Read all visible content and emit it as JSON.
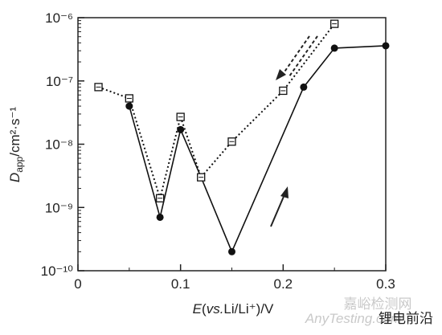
{
  "chart_data": {
    "type": "line",
    "log_y": true,
    "y_label": {
      "symbol": "D",
      "subscript": "app",
      "unit": "/cm²·s⁻¹"
    },
    "x_label": {
      "symbol": "E",
      "open": "(",
      "italic": "vs.",
      "rest": "Li/Li⁺)/V"
    },
    "xlim": [
      0,
      0.3
    ],
    "xticks": [
      0,
      0.1,
      0.2,
      0.3
    ],
    "ylim": [
      1e-10,
      1e-06
    ],
    "yticks": [
      {
        "value": 1e-10,
        "label": "10⁻¹⁰"
      },
      {
        "value": 1e-09,
        "label": "10⁻⁹"
      },
      {
        "value": 1e-08,
        "label": "10⁻⁸"
      },
      {
        "value": 1e-07,
        "label": "10⁻⁷"
      },
      {
        "value": 1e-06,
        "label": "10⁻⁶"
      }
    ],
    "series": [
      {
        "color": "#111111",
        "marker": "circle",
        "dash": false,
        "x": [
          0.05,
          0.08,
          0.1,
          0.12,
          0.15,
          0.22,
          0.25,
          0.3
        ],
        "values": [
          4e-08,
          7e-10,
          1.7e-08,
          3e-09,
          2e-10,
          8e-08,
          3.3e-07,
          3.6e-07
        ]
      },
      {
        "color": "#111111",
        "marker": "square",
        "dash": true,
        "x": [
          0.02,
          0.05,
          0.08,
          0.1,
          0.12,
          0.15,
          0.2,
          0.25
        ],
        "values": [
          8e-08,
          5.3e-08,
          1.4e-09,
          2.7e-08,
          3e-09,
          1.1e-08,
          7e-08,
          8e-07
        ]
      }
    ],
    "watermark": [
      "嘉峪检测网",
      "AnyTesting.com",
      "锂电前沿"
    ]
  }
}
